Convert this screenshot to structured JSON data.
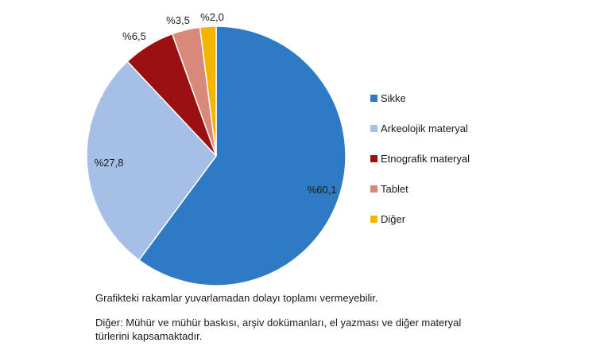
{
  "chart_data": {
    "type": "pie",
    "slices": [
      {
        "name": "Sikke",
        "value": 60.1,
        "label": "%60,1",
        "color": "#2e7ac4"
      },
      {
        "name": "Arkeolojik materyal",
        "value": 27.8,
        "label": "%27,8",
        "color": "#a6bfe6"
      },
      {
        "name": "Etnografik materyal",
        "value": 6.5,
        "label": "%6,5",
        "color": "#9b1111"
      },
      {
        "name": "Tablet",
        "value": 3.5,
        "label": "%3,5",
        "color": "#d9897a"
      },
      {
        "name": "Diğer",
        "value": 2.0,
        "label": "%2,0",
        "color": "#f5b400"
      }
    ],
    "start_angle": "top (12 o'clock)",
    "direction": "clockwise",
    "legend_position": "right"
  },
  "notes": {
    "line1": "Grafikteki rakamlar yuvarlamadan dolayı toplamı vermeyebilir.",
    "line2": "Diğer: Mühür ve mühür baskısı, arşiv dokümanları, el yazması ve diğer materyal türlerini kapsamaktadır."
  }
}
